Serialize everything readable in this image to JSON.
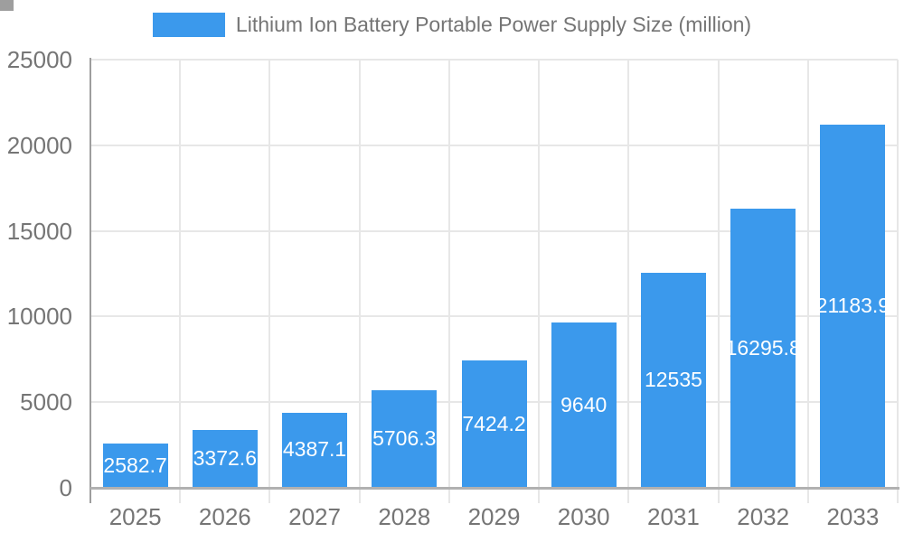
{
  "legend": {
    "label": "Lithium Ion Battery Portable Power Supply Size (million)"
  },
  "colors": {
    "bar": "#3b99ec",
    "label_text": "#757575",
    "bar_label_text": "#ffffff",
    "axis_line": "#9e9e9e",
    "bottom_axis_line": "#b1b1b1",
    "gridline": "#e7e7e7"
  },
  "chart_data": {
    "type": "bar",
    "title": "Lithium Ion Battery Portable Power Supply Size (million)",
    "categories": [
      "2025",
      "2026",
      "2027",
      "2028",
      "2029",
      "2030",
      "2031",
      "2032",
      "2033"
    ],
    "values": [
      2582.7,
      3372.6,
      4387.1,
      5706.3,
      7424.2,
      9640,
      12535,
      16295.8,
      21183.9
    ],
    "bar_labels": [
      "2582.7",
      "3372.6",
      "4387.1",
      "5706.3",
      "7424.2",
      "9640",
      "12535",
      "16295.8",
      "21183.9"
    ],
    "series_name": "Lithium Ion Battery Portable Power Supply Size (million)",
    "xlabel": "",
    "ylabel": "",
    "ylim": [
      0,
      25000
    ],
    "yticks": [
      "0",
      "5000",
      "10000",
      "15000",
      "20000",
      "25000"
    ],
    "grid": "on",
    "legend_position": "top"
  }
}
